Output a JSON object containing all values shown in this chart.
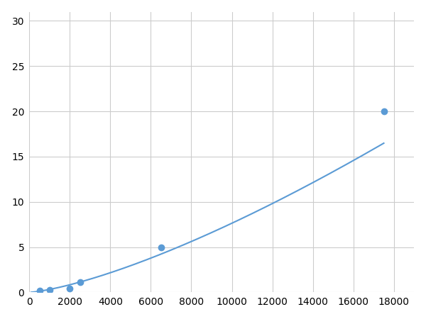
{
  "x": [
    500,
    1000,
    2000,
    2500,
    6500,
    17500
  ],
  "y": [
    0.2,
    0.3,
    0.4,
    1.1,
    5.0,
    20.0
  ],
  "line_color": "#5b9bd5",
  "marker_color": "#5b9bd5",
  "marker_size": 6,
  "xlim": [
    0,
    19000
  ],
  "ylim": [
    0,
    31
  ],
  "xticks": [
    0,
    2000,
    4000,
    6000,
    8000,
    10000,
    12000,
    14000,
    16000,
    18000
  ],
  "yticks": [
    0,
    5,
    10,
    15,
    20,
    25,
    30
  ],
  "grid_color": "#cccccc",
  "background_color": "#ffffff",
  "tick_fontsize": 10
}
